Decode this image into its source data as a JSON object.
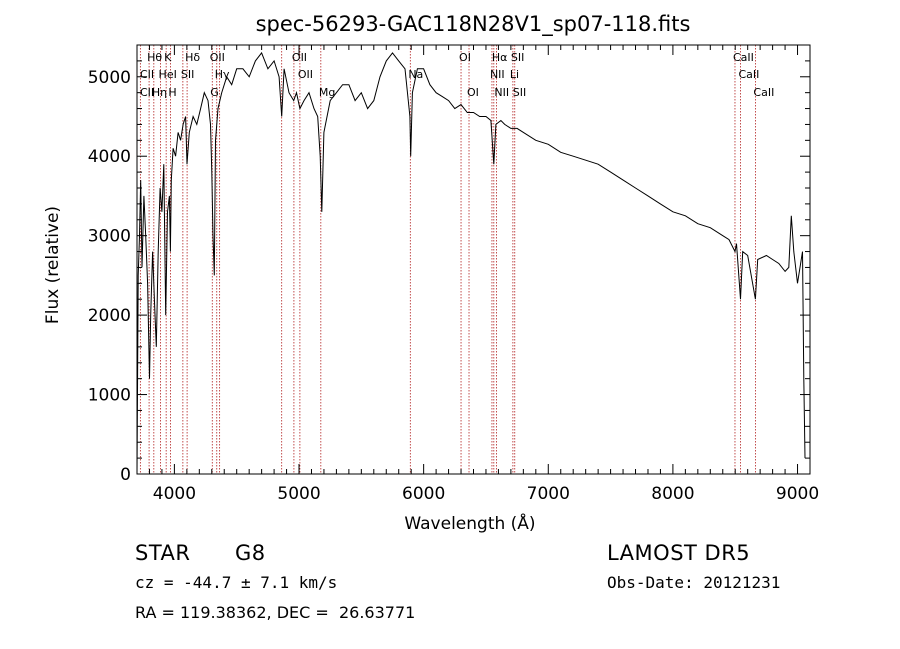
{
  "chart_data": {
    "type": "line",
    "title": "spec-56293-GAC118N28V1_sp07-118.fits",
    "xlabel": "Wavelength (Å)",
    "ylabel": "Flux (relative)",
    "xlim": [
      3700,
      9100
    ],
    "ylim": [
      0,
      5400
    ],
    "x_ticks": [
      4000,
      5000,
      6000,
      7000,
      8000,
      9000
    ],
    "y_ticks": [
      0,
      1000,
      2000,
      3000,
      4000,
      5000
    ],
    "line_color": "#000000",
    "marker_color": "#b22222",
    "spectrum": [
      [
        3700,
        0
      ],
      [
        3710,
        2500
      ],
      [
        3720,
        3000
      ],
      [
        3730,
        3700
      ],
      [
        3740,
        2600
      ],
      [
        3755,
        3500
      ],
      [
        3770,
        3000
      ],
      [
        3785,
        2400
      ],
      [
        3800,
        1200
      ],
      [
        3810,
        2000
      ],
      [
        3825,
        2800
      ],
      [
        3840,
        2200
      ],
      [
        3855,
        1600
      ],
      [
        3870,
        2800
      ],
      [
        3885,
        3600
      ],
      [
        3900,
        3300
      ],
      [
        3915,
        3900
      ],
      [
        3930,
        2000
      ],
      [
        3945,
        3300
      ],
      [
        3960,
        3500
      ],
      [
        3968,
        2800
      ],
      [
        3975,
        3700
      ],
      [
        3990,
        4100
      ],
      [
        4010,
        4000
      ],
      [
        4030,
        4300
      ],
      [
        4050,
        4200
      ],
      [
        4070,
        4400
      ],
      [
        4090,
        4500
      ],
      [
        4101,
        3900
      ],
      [
        4120,
        4300
      ],
      [
        4150,
        4500
      ],
      [
        4180,
        4400
      ],
      [
        4210,
        4600
      ],
      [
        4240,
        4800
      ],
      [
        4270,
        4700
      ],
      [
        4290,
        4400
      ],
      [
        4300,
        3800
      ],
      [
        4310,
        3000
      ],
      [
        4320,
        2500
      ],
      [
        4330,
        4200
      ],
      [
        4350,
        4600
      ],
      [
        4380,
        4800
      ],
      [
        4420,
        5000
      ],
      [
        4460,
        4900
      ],
      [
        4500,
        5100
      ],
      [
        4550,
        5100
      ],
      [
        4600,
        5000
      ],
      [
        4650,
        5200
      ],
      [
        4700,
        5300
      ],
      [
        4750,
        5100
      ],
      [
        4800,
        5200
      ],
      [
        4840,
        5000
      ],
      [
        4861,
        4500
      ],
      [
        4880,
        5100
      ],
      [
        4920,
        4800
      ],
      [
        4957,
        4700
      ],
      [
        4980,
        4800
      ],
      [
        5007,
        4600
      ],
      [
        5040,
        4700
      ],
      [
        5080,
        4800
      ],
      [
        5120,
        4600
      ],
      [
        5150,
        4500
      ],
      [
        5170,
        4000
      ],
      [
        5183,
        3300
      ],
      [
        5200,
        4300
      ],
      [
        5250,
        4700
      ],
      [
        5300,
        4800
      ],
      [
        5350,
        4900
      ],
      [
        5400,
        4900
      ],
      [
        5450,
        4700
      ],
      [
        5500,
        4800
      ],
      [
        5550,
        4600
      ],
      [
        5600,
        4700
      ],
      [
        5650,
        5000
      ],
      [
        5700,
        5200
      ],
      [
        5750,
        5300
      ],
      [
        5800,
        5200
      ],
      [
        5850,
        5100
      ],
      [
        5890,
        4500
      ],
      [
        5896,
        4000
      ],
      [
        5910,
        4800
      ],
      [
        5950,
        5100
      ],
      [
        6000,
        5100
      ],
      [
        6050,
        4900
      ],
      [
        6100,
        4800
      ],
      [
        6150,
        4750
      ],
      [
        6200,
        4700
      ],
      [
        6250,
        4600
      ],
      [
        6300,
        4650
      ],
      [
        6350,
        4550
      ],
      [
        6400,
        4550
      ],
      [
        6450,
        4500
      ],
      [
        6500,
        4500
      ],
      [
        6540,
        4450
      ],
      [
        6563,
        3900
      ],
      [
        6580,
        4400
      ],
      [
        6620,
        4450
      ],
      [
        6650,
        4400
      ],
      [
        6700,
        4350
      ],
      [
        6750,
        4350
      ],
      [
        6800,
        4300
      ],
      [
        6900,
        4200
      ],
      [
        7000,
        4150
      ],
      [
        7100,
        4050
      ],
      [
        7200,
        4000
      ],
      [
        7300,
        3950
      ],
      [
        7400,
        3900
      ],
      [
        7500,
        3800
      ],
      [
        7600,
        3700
      ],
      [
        7700,
        3600
      ],
      [
        7800,
        3500
      ],
      [
        7900,
        3400
      ],
      [
        8000,
        3300
      ],
      [
        8100,
        3250
      ],
      [
        8200,
        3150
      ],
      [
        8300,
        3100
      ],
      [
        8400,
        3000
      ],
      [
        8450,
        2950
      ],
      [
        8498,
        2800
      ],
      [
        8510,
        2900
      ],
      [
        8542,
        2200
      ],
      [
        8560,
        2800
      ],
      [
        8600,
        2750
      ],
      [
        8662,
        2200
      ],
      [
        8680,
        2700
      ],
      [
        8750,
        2750
      ],
      [
        8800,
        2700
      ],
      [
        8850,
        2650
      ],
      [
        8900,
        2550
      ],
      [
        8930,
        2600
      ],
      [
        8950,
        3250
      ],
      [
        8970,
        2800
      ],
      [
        9000,
        2400
      ],
      [
        9020,
        2600
      ],
      [
        9040,
        2800
      ],
      [
        9050,
        1200
      ],
      [
        9060,
        200
      ]
    ],
    "annotations": [
      {
        "label": "Hθ",
        "x": 3797,
        "row": 0
      },
      {
        "label": "K",
        "x": 3934,
        "row": 0
      },
      {
        "label": "Hδ",
        "x": 4102,
        "row": 0
      },
      {
        "label": "OII",
        "x": 4300,
        "row": 0
      },
      {
        "label": "OII",
        "x": 4959,
        "row": 0
      },
      {
        "label": "OI",
        "x": 6300,
        "row": 0
      },
      {
        "label": "Hα",
        "x": 6563,
        "row": 0
      },
      {
        "label": "SII",
        "x": 6716,
        "row": 0
      },
      {
        "label": "CaII",
        "x": 8498,
        "row": 0
      },
      {
        "label": "CII",
        "x": 3740,
        "row": 1
      },
      {
        "label": "HeI",
        "x": 3889,
        "row": 1
      },
      {
        "label": "SII",
        "x": 4068,
        "row": 1
      },
      {
        "label": "Hγ",
        "x": 4340,
        "row": 1
      },
      {
        "label": "OII",
        "x": 5007,
        "row": 1
      },
      {
        "label": "Na",
        "x": 5893,
        "row": 1
      },
      {
        "label": "NII",
        "x": 6548,
        "row": 1
      },
      {
        "label": "Li",
        "x": 6708,
        "row": 1
      },
      {
        "label": "CaII",
        "x": 8542,
        "row": 1
      },
      {
        "label": "CII",
        "x": 3740,
        "row": 2
      },
      {
        "label": "Hη",
        "x": 3835,
        "row": 2
      },
      {
        "label": "H",
        "x": 3968,
        "row": 2
      },
      {
        "label": "G",
        "x": 4304,
        "row": 2
      },
      {
        "label": "Mg",
        "x": 5175,
        "row": 2
      },
      {
        "label": "OI",
        "x": 6364,
        "row": 2
      },
      {
        "label": "NII",
        "x": 6584,
        "row": 2
      },
      {
        "label": "SII",
        "x": 6731,
        "row": 2
      },
      {
        "label": "CaII",
        "x": 8662,
        "row": 2
      }
    ],
    "line_markers": [
      3727,
      3797,
      3835,
      3889,
      3934,
      3968,
      4068,
      4102,
      4304,
      4340,
      4363,
      4861,
      4959,
      5007,
      5175,
      5893,
      6300,
      6364,
      6548,
      6563,
      6584,
      6716,
      6731,
      8498,
      8542,
      8662
    ]
  },
  "info": {
    "object_class": "STAR",
    "subclass": "G8",
    "survey": "LAMOST DR5",
    "redshift": "cz = -44.7 ± 7.1 km/s",
    "obs_date": "Obs-Date: 20121231",
    "coords": "RA = 119.38362, DEC =  26.63771"
  }
}
